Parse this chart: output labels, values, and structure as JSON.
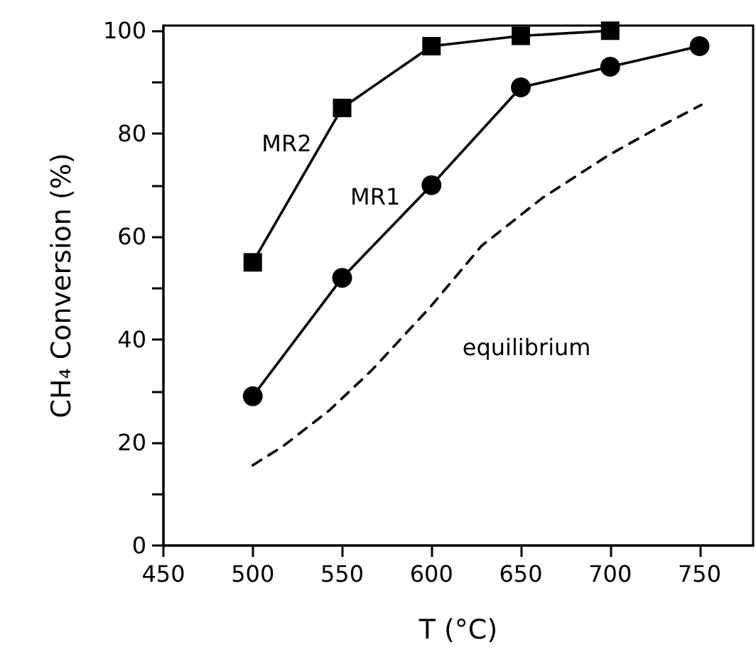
{
  "chart_data": {
    "type": "line",
    "xlabel": "T (°C)",
    "ylabel": "CH₄ Conversion (%)",
    "xlim": [
      450,
      780
    ],
    "xticks": [
      450,
      500,
      550,
      600,
      650,
      700,
      750
    ],
    "ylim": [
      0,
      101
    ],
    "yticks": [
      0,
      {
        "value": 10,
        "label": null
      },
      20,
      {
        "value": 30,
        "label": null
      },
      40,
      {
        "value": 50,
        "label": null
      },
      60,
      {
        "value": 70,
        "label": null
      },
      80,
      {
        "value": 90,
        "label": null
      },
      100
    ],
    "grid": false,
    "series": [
      {
        "name": "MR2",
        "color": "#000000",
        "marker": "square",
        "line_style": "solid",
        "x": [
          500,
          550,
          600,
          650,
          700
        ],
        "values": [
          55,
          85,
          97,
          99,
          100
        ]
      },
      {
        "name": "MR1",
        "color": "#000000",
        "marker": "circle",
        "line_style": "solid",
        "x": [
          500,
          550,
          600,
          650,
          700,
          750
        ],
        "values": [
          29,
          52,
          70,
          89,
          93,
          97
        ]
      },
      {
        "name": "equilibrium",
        "color": "#000000",
        "marker": "none",
        "line_style": "dashed",
        "x": [
          500,
          517,
          543,
          567,
          599,
          628,
          662,
          699,
          728,
          751
        ],
        "values": [
          15.6,
          19.3,
          26.3,
          34.2,
          46.2,
          58.2,
          67.5,
          75.8,
          81.4,
          85.6
        ]
      }
    ]
  }
}
